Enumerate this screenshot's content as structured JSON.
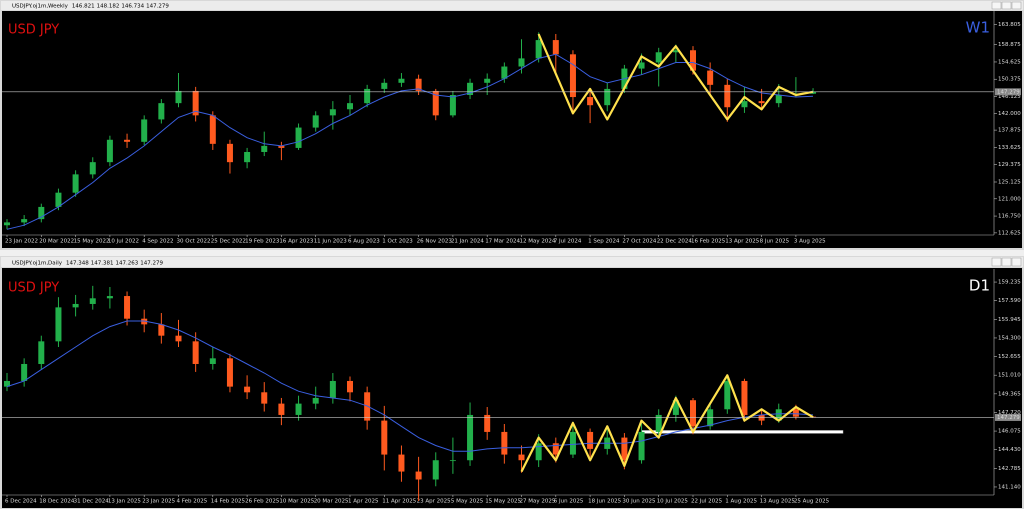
{
  "chart_data": [
    {
      "type": "candlestick",
      "window_title": "USDJPY.oj1m,Weekly",
      "symbol_label": "USD JPY",
      "timeframe_label": "W1",
      "up_color": "#22b04b",
      "down_color": "#ff5a1f",
      "ma_color": "#3a5fe0",
      "zigzag_color": "#ffe14d",
      "symbol_color": "#e01010",
      "timeframe_color": "#3a5fe0",
      "categories": [
        "23 Jan 2022",
        null,
        "20 Mar 2022",
        null,
        "15 May 2022",
        null,
        "10 Jul 2022",
        null,
        "4 Sep 2022",
        null,
        "30 Oct 2022",
        null,
        "25 Dec 2022",
        null,
        "19 Feb 2023",
        null,
        "16 Apr 2023",
        null,
        "11 Jun 2023",
        null,
        "6 Aug 2023",
        null,
        "1 Oct 2023",
        null,
        "26 Nov 2023",
        null,
        "21 Jan 2024",
        null,
        "17 Mar 2024",
        null,
        "12 May 2024",
        null,
        "7 Jul 2024",
        null,
        "1 Sep 2024",
        null,
        "27 Oct 2024",
        null,
        "22 Dec 2024",
        null,
        "16 Feb 2025",
        null,
        "13 Apr 2025",
        null,
        "8 Jun 2025",
        null,
        "3 Aug 2025",
        null
      ],
      "candles": [
        [
          114.5,
          116.0,
          113.5,
          115.2
        ],
        [
          115.2,
          117.0,
          114.3,
          116.0
        ],
        [
          116.0,
          119.8,
          115.2,
          119.0
        ],
        [
          119.0,
          123.5,
          118.2,
          122.5
        ],
        [
          122.5,
          128.0,
          121.5,
          127.0
        ],
        [
          127.0,
          131.2,
          126.0,
          130.0
        ],
        [
          130.0,
          136.5,
          129.0,
          135.5
        ],
        [
          135.5,
          137.0,
          133.5,
          135.0
        ],
        [
          135.0,
          141.5,
          134.2,
          140.5
        ],
        [
          140.5,
          145.5,
          139.5,
          144.5
        ],
        [
          144.5,
          151.9,
          143.5,
          147.5
        ],
        [
          147.5,
          148.5,
          140.0,
          141.5
        ],
        [
          141.5,
          142.5,
          133.0,
          134.5
        ],
        [
          134.5,
          135.5,
          127.2,
          130.0
        ],
        [
          130.0,
          133.5,
          128.5,
          132.5
        ],
        [
          132.5,
          137.5,
          131.5,
          134.0
        ],
        [
          134.0,
          135.0,
          130.5,
          133.5
        ],
        [
          133.5,
          139.5,
          133.0,
          138.5
        ],
        [
          138.5,
          142.5,
          137.5,
          141.5
        ],
        [
          141.5,
          145.0,
          138.0,
          143.0
        ],
        [
          143.0,
          146.5,
          141.5,
          144.5
        ],
        [
          144.5,
          149.0,
          143.5,
          148.0
        ],
        [
          148.0,
          150.5,
          147.0,
          149.5
        ],
        [
          149.5,
          151.9,
          148.5,
          150.5
        ],
        [
          150.5,
          151.5,
          146.5,
          147.5
        ],
        [
          147.5,
          148.0,
          140.3,
          141.5
        ],
        [
          141.5,
          147.5,
          141.0,
          146.5
        ],
        [
          146.5,
          150.5,
          145.5,
          149.5
        ],
        [
          149.5,
          151.8,
          146.5,
          150.5
        ],
        [
          150.5,
          154.5,
          149.5,
          153.5
        ],
        [
          153.5,
          160.2,
          151.8,
          155.5
        ],
        [
          155.5,
          161.9,
          154.5,
          160.0
        ],
        [
          160.0,
          161.5,
          151.5,
          156.5
        ],
        [
          156.5,
          157.5,
          141.7,
          146.0
        ],
        [
          146.0,
          147.5,
          139.6,
          144.0
        ],
        [
          144.0,
          149.5,
          142.5,
          148.0
        ],
        [
          148.0,
          153.9,
          147.0,
          153.0
        ],
        [
          153.0,
          156.7,
          151.5,
          154.5
        ],
        [
          154.5,
          158.1,
          148.6,
          157.0
        ],
        [
          157.0,
          158.9,
          154.5,
          157.5
        ],
        [
          157.5,
          158.5,
          151.5,
          152.5
        ],
        [
          152.5,
          154.5,
          146.5,
          149.0
        ],
        [
          149.0,
          150.5,
          139.9,
          143.5
        ],
        [
          143.5,
          148.6,
          142.1,
          145.0
        ],
        [
          145.0,
          148.0,
          142.8,
          144.5
        ],
        [
          144.5,
          149.2,
          143.5,
          146.5
        ],
        [
          146.5,
          150.9,
          145.9,
          146.8
        ],
        [
          146.821,
          148.182,
          146.734,
          147.279
        ]
      ],
      "ma": [
        113.5,
        114.5,
        116.5,
        119,
        122,
        125,
        128.5,
        131,
        134,
        137.5,
        141,
        142.5,
        141.5,
        138.5,
        136,
        134.5,
        134,
        135,
        137,
        139.5,
        141.5,
        144,
        146,
        147.5,
        148,
        146.5,
        146,
        147,
        148.5,
        150.5,
        153,
        155.5,
        156.5,
        154,
        151,
        149.5,
        150.5,
        151.5,
        153,
        154.5,
        154.5,
        153,
        150.5,
        148.5,
        147,
        146.5,
        146,
        146.2
      ],
      "zigzag": {
        "x": [
          31,
          33,
          34,
          35,
          37,
          38,
          39,
          42,
          43,
          44,
          45,
          46,
          47
        ],
        "values": [
          161.5,
          142,
          148,
          140.5,
          156,
          153.5,
          158.5,
          140.5,
          146,
          143,
          148.5,
          146.5,
          147.3
        ]
      },
      "ylim": [
        112.1,
        166.9
      ],
      "yticks": [
        163.805,
        158.875,
        154.625,
        150.375,
        146.125,
        {
          "value": 142,
          "label": "142.000"
        },
        137.875,
        133.625,
        129.375,
        125.125,
        {
          "value": 121,
          "label": "121.000"
        },
        {
          "value": 116.75,
          "label": "116.750"
        },
        112.625
      ]
    },
    {
      "type": "candlestick",
      "window_title": "USDJPY.oj1m,Daily",
      "symbol_label": "USD JPY",
      "timeframe_label": "D1",
      "up_color": "#22b04b",
      "down_color": "#ff5a1f",
      "ma_color": "#3a5fe0",
      "zigzag_color": "#ffe14d",
      "symbol_color": "#e01010",
      "timeframe_color": "#ffffff",
      "categories": [
        "6 Dec 2024",
        null,
        "18 Dec 2024",
        null,
        "31 Dec 2024",
        null,
        "13 Jan 2025",
        null,
        "23 Jan 2025",
        null,
        "4 Feb 2025",
        null,
        "14 Feb 2025",
        null,
        "26 Feb 2025",
        null,
        "10 Mar 2025",
        null,
        "20 Mar 2025",
        null,
        "1 Apr 2025",
        null,
        "11 Apr 2025",
        null,
        "23 Apr 2025",
        null,
        "5 May 2025",
        null,
        "15 May 2025",
        null,
        "27 May 2025",
        null,
        "6 Jun 2025",
        null,
        "18 Jun 2025",
        null,
        "30 Jun 2025",
        null,
        "10 Jul 2025",
        null,
        "22 Jul 2025",
        null,
        "1 Aug 2025",
        null,
        "13 Aug 2025",
        null,
        "25 Aug 2025",
        null
      ],
      "candles": [
        [
          150.0,
          151.2,
          149.6,
          150.5
        ],
        [
          150.5,
          152.5,
          150.0,
          152.0
        ],
        [
          152.0,
          154.5,
          151.5,
          154.0
        ],
        [
          154.0,
          157.9,
          153.5,
          157.0
        ],
        [
          157.0,
          158.1,
          156.2,
          157.3
        ],
        [
          157.3,
          158.9,
          156.8,
          157.8
        ],
        [
          157.8,
          158.8,
          156.9,
          158.0
        ],
        [
          158.0,
          158.4,
          155.4,
          156.0
        ],
        [
          156.0,
          156.8,
          154.8,
          155.5
        ],
        [
          155.5,
          156.5,
          153.8,
          154.5
        ],
        [
          154.5,
          155.9,
          153.5,
          154.0
        ],
        [
          154.0,
          154.8,
          151.3,
          152.0
        ],
        [
          152.0,
          153.5,
          151.5,
          152.5
        ],
        [
          152.5,
          152.9,
          149.5,
          150.0
        ],
        [
          150.0,
          151.0,
          148.9,
          149.5
        ],
        [
          149.5,
          150.4,
          147.8,
          148.5
        ],
        [
          148.5,
          149.0,
          146.6,
          147.5
        ],
        [
          147.5,
          149.2,
          147.0,
          148.5
        ],
        [
          148.5,
          150.0,
          148.0,
          149.0
        ],
        [
          149.0,
          151.2,
          148.5,
          150.5
        ],
        [
          150.5,
          150.9,
          148.7,
          149.5
        ],
        [
          149.5,
          150.0,
          146.2,
          147.0
        ],
        [
          147.0,
          148.3,
          142.6,
          144.0
        ],
        [
          144.0,
          144.8,
          141.6,
          142.5
        ],
        [
          142.5,
          143.8,
          139.9,
          141.8
        ],
        [
          141.8,
          144.2,
          141.2,
          143.5
        ],
        [
          143.5,
          145.5,
          142.3,
          143.5
        ],
        [
          143.5,
          148.6,
          143.0,
          147.5
        ],
        [
          147.5,
          148.2,
          145.3,
          146.0
        ],
        [
          146.0,
          146.7,
          143.2,
          144.0
        ],
        [
          144.0,
          144.8,
          142.4,
          143.5
        ],
        [
          143.5,
          145.8,
          142.9,
          145.0
        ],
        [
          145.0,
          145.5,
          143.3,
          144.0
        ],
        [
          144.0,
          146.9,
          143.7,
          146.0
        ],
        [
          146.0,
          146.3,
          143.8,
          144.5
        ],
        [
          144.5,
          146.3,
          144.0,
          145.5
        ],
        [
          145.5,
          145.9,
          142.7,
          143.5
        ],
        [
          143.5,
          146.8,
          143.2,
          146.0
        ],
        [
          146.0,
          148.0,
          145.5,
          147.5
        ],
        [
          147.5,
          149.2,
          146.9,
          148.8
        ],
        [
          148.8,
          149.0,
          145.8,
          146.5
        ],
        [
          146.5,
          148.5,
          146.2,
          148.0
        ],
        [
          148.0,
          150.9,
          147.6,
          150.5
        ],
        [
          150.5,
          150.7,
          146.9,
          147.5
        ],
        [
          147.5,
          148.0,
          146.6,
          147.0
        ],
        [
          147.0,
          148.5,
          146.8,
          148.0
        ],
        [
          148.0,
          148.4,
          147.1,
          147.348
        ],
        [
          147.348,
          147.381,
          147.263,
          147.279
        ]
      ],
      "ma": [
        150,
        150.5,
        151.5,
        152.5,
        153.5,
        154.5,
        155.3,
        155.8,
        155.8,
        155.5,
        155,
        154.3,
        153.5,
        152.8,
        152,
        151.2,
        150.3,
        149.6,
        149.2,
        149,
        148.8,
        148.3,
        147.5,
        146.5,
        145.5,
        144.8,
        144.3,
        144.3,
        144.5,
        144.6,
        144.6,
        144.7,
        144.8,
        144.9,
        145,
        145,
        145,
        145.2,
        145.6,
        146,
        146.3,
        146.6,
        147,
        147.3,
        147.5,
        147.6,
        147.6,
        147.5
      ],
      "zigzag": {
        "x": [
          30,
          31,
          32,
          33,
          34,
          35,
          36,
          37,
          38,
          39,
          40,
          41,
          42,
          43,
          44,
          45,
          46,
          47
        ],
        "values": [
          142.5,
          145.5,
          143.5,
          146.8,
          143.5,
          146.5,
          143.0,
          147.0,
          145.5,
          149.0,
          146.0,
          148.5,
          151.0,
          147.0,
          148.0,
          147.0,
          148.2,
          147.3
        ]
      },
      "support": {
        "from": 37,
        "to": 47,
        "value": 146.0
      },
      "ylim": [
        140.43,
        160.3
      ],
      "yticks": [
        159.235,
        {
          "value": 157.59,
          "label": "157.590"
        },
        155.945,
        {
          "value": 154.3,
          "label": "154.300"
        },
        152.655,
        {
          "value": 151.01,
          "label": "151.010"
        },
        149.365,
        {
          "value": 147.72,
          "label": "147.720"
        },
        146.075,
        {
          "value": 144.43,
          "label": "144.430"
        },
        142.785,
        {
          "value": 141.14,
          "label": "141.140"
        }
      ]
    }
  ]
}
